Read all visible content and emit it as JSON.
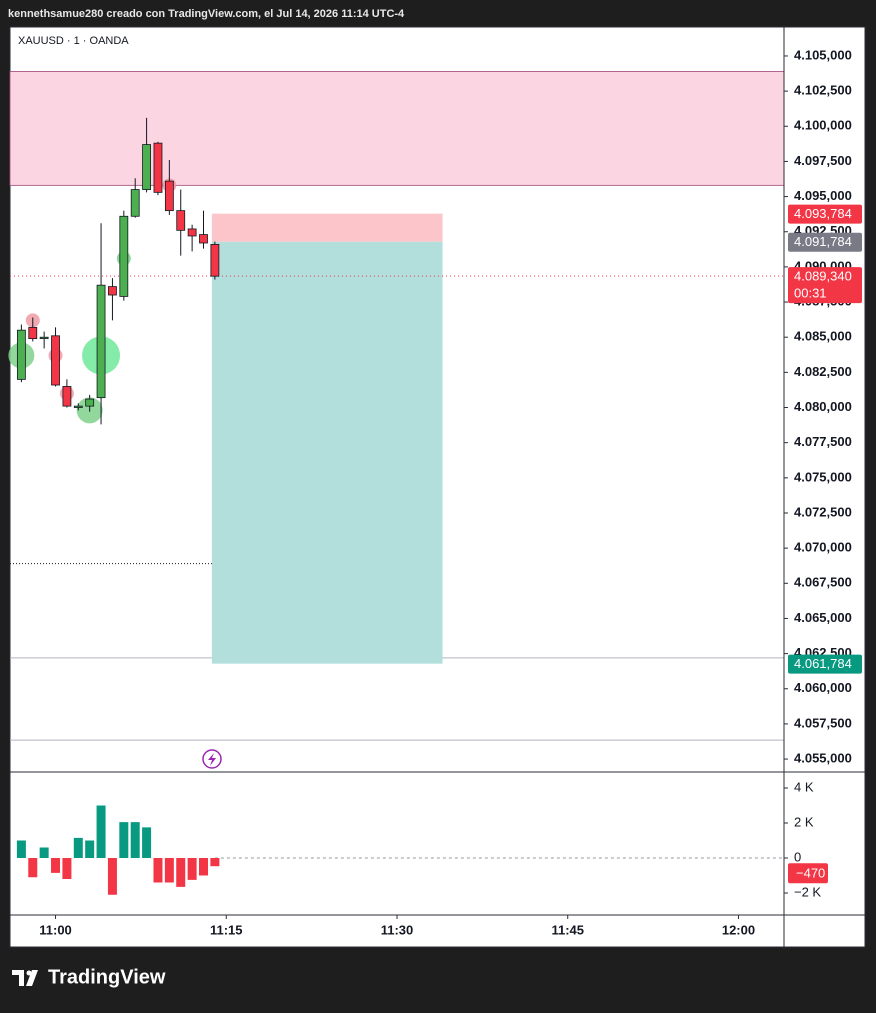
{
  "header": "kennethsamue280 creado con TradingView.com, el Jul 14, 2026 11:14 UTC-4",
  "brand": "TradingView",
  "chart_data": {
    "type": "candlestick",
    "title": "XAUUSD · 1 · OANDA",
    "x": [
      "10:57",
      "10:58",
      "10:59",
      "11:00",
      "11:01",
      "11:02",
      "11:03",
      "11:04",
      "11:05",
      "11:06",
      "11:07",
      "11:08",
      "11:09",
      "11:10",
      "11:11",
      "11:12",
      "11:13",
      "11:14"
    ],
    "open": [
      4082.0,
      4085.7,
      4084.9,
      4085.1,
      4081.5,
      4080.0,
      4080.1,
      4080.7,
      4088.6,
      4087.9,
      4093.6,
      4095.5,
      4098.8,
      4096.1,
      4094.0,
      4092.7,
      4092.3,
      4091.6
    ],
    "high": [
      4085.9,
      4086.4,
      4085.4,
      4085.7,
      4082.0,
      4080.3,
      4080.9,
      4093.1,
      4089.2,
      4094.0,
      4096.3,
      4100.6,
      4098.9,
      4097.6,
      4095.5,
      4093.0,
      4094.0,
      4091.8
    ],
    "low": [
      4081.8,
      4084.7,
      4084.2,
      4081.5,
      4080.0,
      4079.8,
      4079.7,
      4078.8,
      4086.2,
      4087.6,
      4093.5,
      4095.3,
      4095.1,
      4093.7,
      4090.8,
      4091.1,
      4091.3,
      4089.1
    ],
    "close": [
      4085.5,
      4084.9,
      4085.0,
      4081.6,
      4080.1,
      4080.1,
      4080.6,
      4088.7,
      4088.0,
      4093.6,
      4095.5,
      4098.7,
      4095.3,
      4094.0,
      4092.6,
      4092.2,
      4091.7,
      4089.34
    ],
    "up_color": "#4caf50",
    "down_color": "#f23645",
    "xlim": [
      "10:56",
      "12:04"
    ],
    "xticks": [
      "11:00",
      "11:15",
      "11:30",
      "11:45",
      "12:00"
    ],
    "ylim": [
      4054.08,
      4107.06
    ],
    "yticks": [
      {
        "value": 4055,
        "label": "4.055,000"
      },
      {
        "value": 4057.5,
        "label": "4.057,500"
      },
      {
        "value": 4060,
        "label": "4.060,000"
      },
      {
        "value": 4062.5,
        "label": "4.062,500"
      },
      {
        "value": 4065,
        "label": "4.065,000"
      },
      {
        "value": 4067.5,
        "label": "4.067,500"
      },
      {
        "value": 4070,
        "label": "4.070,000"
      },
      {
        "value": 4072.5,
        "label": "4.072,500"
      },
      {
        "value": 4075,
        "label": "4.075,000"
      },
      {
        "value": 4077.5,
        "label": "4.077,500"
      },
      {
        "value": 4080,
        "label": "4.080,000"
      },
      {
        "value": 4082.5,
        "label": "4.082,500"
      },
      {
        "value": 4085,
        "label": "4.085,000"
      },
      {
        "value": 4087.5,
        "label": "4.087,500"
      },
      {
        "value": 4090,
        "label": "4.090,000"
      },
      {
        "value": 4092.5,
        "label": "4.092,500"
      },
      {
        "value": 4095,
        "label": "4.095,000"
      },
      {
        "value": 4097.5,
        "label": "4.097,500"
      },
      {
        "value": 4100,
        "label": "4.100,000"
      },
      {
        "value": 4102.5,
        "label": "4.102,500"
      },
      {
        "value": 4105,
        "label": "4.105,000"
      }
    ],
    "zones": [
      {
        "top": 4103.9,
        "bottom": 4095.8,
        "color": "#fbd5e1",
        "border": "#a0467a"
      }
    ],
    "hlines": [
      {
        "value": 4068.9,
        "style": "dotted",
        "end": "11:20"
      },
      {
        "value": 4062.2,
        "style": "solid"
      },
      {
        "value": 4056.35,
        "style": "solid"
      }
    ],
    "bubbles": [
      {
        "time": "10:57",
        "price": 4083.7,
        "size": 2,
        "color": "#7fd08a"
      },
      {
        "time": "10:58",
        "price": 4086.2,
        "size": 1,
        "color": "#ee9aa4"
      },
      {
        "time": "11:00",
        "price": 4083.7,
        "size": 1,
        "color": "#ee9aa4"
      },
      {
        "time": "11:01",
        "price": 4081.0,
        "size": 1,
        "color": "#ee9aa4"
      },
      {
        "time": "11:03",
        "price": 4079.8,
        "size": 2,
        "color": "#7fd08a"
      },
      {
        "time": "11:04",
        "price": 4083.7,
        "size": 3,
        "color": "#6ee89a"
      },
      {
        "time": "11:06",
        "price": 4090.6,
        "size": 1,
        "color": "#7fd08a"
      },
      {
        "time": "11:10",
        "price": 4095.8,
        "size": 1,
        "color": "#ee9aa4"
      }
    ],
    "position": {
      "start": "11:14",
      "end": "11:34",
      "stop": {
        "value": 4093.784,
        "label": "4.093,784",
        "color": "#f23645"
      },
      "entry": {
        "value": 4091.784,
        "label": "4.091,784",
        "color": "#787b86"
      },
      "target": {
        "value": 4061.784,
        "label": "4.061,784",
        "color": "#089981"
      }
    },
    "last_price": {
      "value": 4089.34,
      "label": "4.089,340",
      "countdown": "00:31"
    },
    "delta": {
      "values": [
        1000,
        -1100,
        600,
        -850,
        -1200,
        1150,
        1000,
        3000,
        -2100,
        2050,
        2050,
        1750,
        -1400,
        -1400,
        -1650,
        -1250,
        -1000,
        -470
      ],
      "last_value_label": "−470",
      "up_color": "#089981",
      "down_color": "#f23645",
      "ylim": [
        -3257,
        4914
      ],
      "yticks": [
        {
          "value": 4000,
          "label": "4 K"
        },
        {
          "value": 2000,
          "label": "2 K"
        },
        0,
        {
          "value": -2000,
          "label": "−2 K"
        }
      ]
    }
  }
}
